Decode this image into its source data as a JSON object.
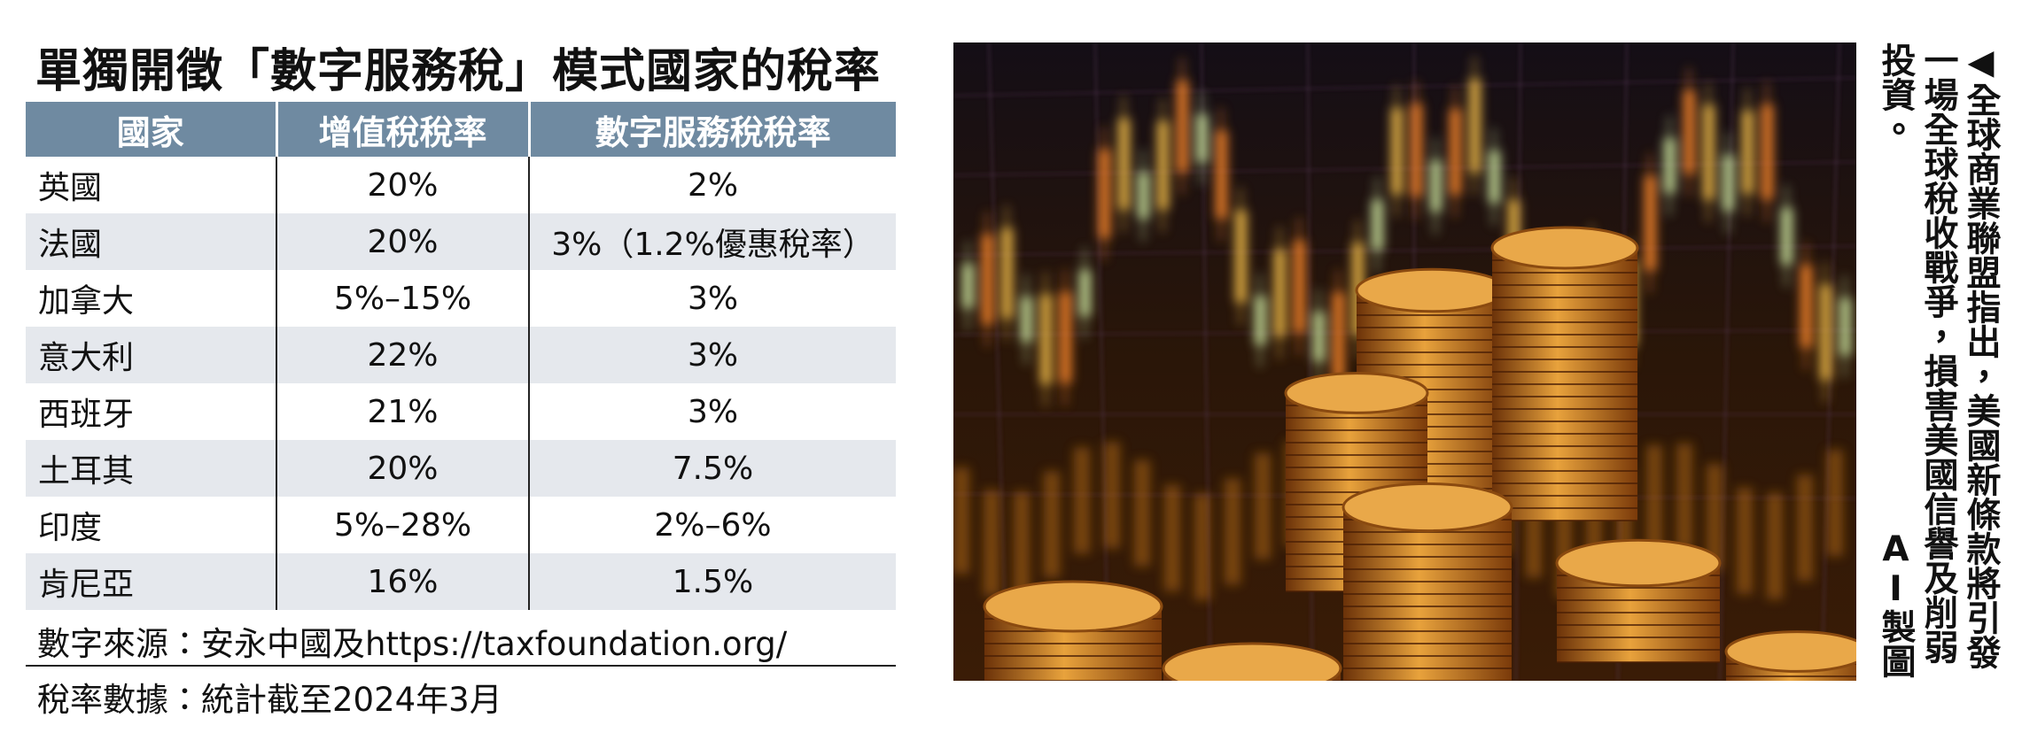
{
  "title": "單獨開徵「數字服務稅」模式國家的稅率",
  "table": {
    "headers": [
      "國家",
      "增值稅稅率",
      "數字服務稅稅率"
    ],
    "rows": [
      [
        "英國",
        "20%",
        "2%"
      ],
      [
        "法國",
        "20%",
        "3%（1.2%優惠稅率）"
      ],
      [
        "加拿大",
        "5%–15%",
        "3%"
      ],
      [
        "意大利",
        "22%",
        "3%"
      ],
      [
        "西班牙",
        "21%",
        "3%"
      ],
      [
        "土耳其",
        "20%",
        "7.5%"
      ],
      [
        "印度",
        "5%–28%",
        "2%–6%"
      ],
      [
        "肯尼亞",
        "16%",
        "1.5%"
      ]
    ]
  },
  "notes": [
    "數字來源：安永中國及https://taxfoundation.org/",
    "稅率數據：統計截至2024年3月"
  ],
  "caption": "◀全球商業聯盟指出，美國新條款將引發一場全球稅收戰爭，損害美國信譽及削弱投資。",
  "credit": "AI製圖"
}
